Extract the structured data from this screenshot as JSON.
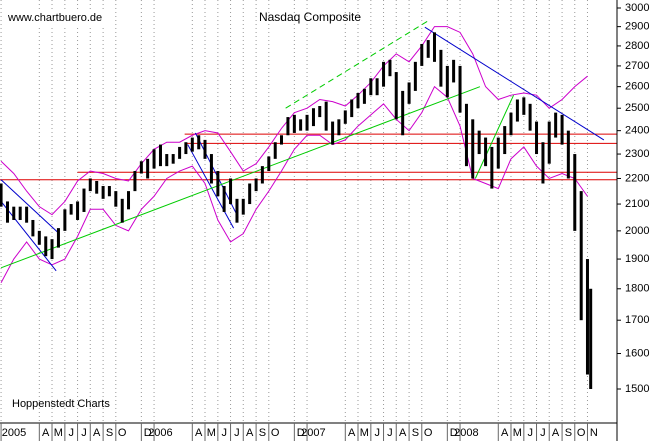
{
  "chart_data": {
    "type": "ohlc",
    "title": "Nasdaq Composite",
    "source": "www.chartbuero.de",
    "credit": "Hoppenstedt Charts",
    "log_y": true,
    "grid": "x",
    "bar_color": "#000000",
    "xlim": [
      2004.993,
      2009.026
    ],
    "ylim": [
      1410,
      3044
    ],
    "yticks": [
      1500,
      1600,
      1700,
      1800,
      1900,
      2000,
      2100,
      2200,
      2300,
      2400,
      2500,
      2600,
      2700,
      2800,
      2900,
      3000
    ],
    "xticks": [
      {
        "value": 2005,
        "label": "2005"
      },
      {
        "value": 2005.25,
        "label": "A"
      },
      {
        "value": 2005.333,
        "label": "M"
      },
      {
        "value": 2005.417,
        "label": "J"
      },
      {
        "value": 2005.5,
        "label": "J"
      },
      {
        "value": 2005.583,
        "label": "A"
      },
      {
        "value": 2005.667,
        "label": "S"
      },
      {
        "value": 2005.75,
        "label": "O"
      },
      {
        "value": 2005.917,
        "label": "D"
      },
      {
        "value": 2006,
        "label": "2006"
      },
      {
        "value": 2006.25,
        "label": "A"
      },
      {
        "value": 2006.333,
        "label": "M"
      },
      {
        "value": 2006.417,
        "label": "J"
      },
      {
        "value": 2006.5,
        "label": "J"
      },
      {
        "value": 2006.583,
        "label": "A"
      },
      {
        "value": 2006.667,
        "label": "S"
      },
      {
        "value": 2006.75,
        "label": "O"
      },
      {
        "value": 2006.917,
        "label": "D"
      },
      {
        "value": 2007,
        "label": "2007"
      },
      {
        "value": 2007.25,
        "label": "A"
      },
      {
        "value": 2007.333,
        "label": "M"
      },
      {
        "value": 2007.417,
        "label": "J"
      },
      {
        "value": 2007.5,
        "label": "J"
      },
      {
        "value": 2007.583,
        "label": "A"
      },
      {
        "value": 2007.667,
        "label": "S"
      },
      {
        "value": 2007.75,
        "label": "O"
      },
      {
        "value": 2007.917,
        "label": "D"
      },
      {
        "value": 2008,
        "label": "2008"
      },
      {
        "value": 2008.25,
        "label": "A"
      },
      {
        "value": 2008.333,
        "label": "M"
      },
      {
        "value": 2008.417,
        "label": "J"
      },
      {
        "value": 2008.5,
        "label": "J"
      },
      {
        "value": 2008.583,
        "label": "A"
      },
      {
        "value": 2008.667,
        "label": "S"
      },
      {
        "value": 2008.75,
        "label": "O"
      },
      {
        "value": 2008.833,
        "label": "N"
      }
    ],
    "x": [
      2005,
      2005.042,
      2005.083,
      2005.125,
      2005.167,
      2005.208,
      2005.25,
      2005.292,
      2005.333,
      2005.375,
      2005.417,
      2005.458,
      2005.5,
      2005.542,
      2005.583,
      2005.625,
      2005.667,
      2005.708,
      2005.75,
      2005.792,
      2005.833,
      2005.875,
      2005.917,
      2005.958,
      2006,
      2006.042,
      2006.083,
      2006.125,
      2006.167,
      2006.208,
      2006.25,
      2006.292,
      2006.333,
      2006.375,
      2006.417,
      2006.458,
      2006.5,
      2006.542,
      2006.583,
      2006.625,
      2006.667,
      2006.708,
      2006.75,
      2006.792,
      2006.833,
      2006.875,
      2006.917,
      2006.958,
      2007,
      2007.042,
      2007.083,
      2007.125,
      2007.167,
      2007.208,
      2007.25,
      2007.292,
      2007.333,
      2007.375,
      2007.417,
      2007.458,
      2007.5,
      2007.542,
      2007.583,
      2007.625,
      2007.667,
      2007.708,
      2007.75,
      2007.792,
      2007.833,
      2007.875,
      2007.917,
      2007.958,
      2008,
      2008.042,
      2008.083,
      2008.125,
      2008.167,
      2008.208,
      2008.25,
      2008.292,
      2008.333,
      2008.375,
      2008.417,
      2008.458,
      2008.5,
      2008.542,
      2008.583,
      2008.625,
      2008.667,
      2008.708,
      2008.75,
      2008.792,
      2008.833,
      2008.854
    ],
    "high": [
      2180,
      2110,
      2090,
      2090,
      2090,
      2040,
      2000,
      1980,
      1970,
      2010,
      2080,
      2100,
      2110,
      2160,
      2200,
      2190,
      2170,
      2170,
      2150,
      2120,
      2150,
      2230,
      2270,
      2280,
      2320,
      2340,
      2300,
      2300,
      2330,
      2350,
      2370,
      2380,
      2360,
      2300,
      2230,
      2170,
      2200,
      2120,
      2120,
      2180,
      2200,
      2250,
      2290,
      2350,
      2380,
      2460,
      2470,
      2450,
      2470,
      2500,
      2510,
      2530,
      2440,
      2450,
      2490,
      2540,
      2570,
      2590,
      2640,
      2640,
      2720,
      2730,
      2670,
      2580,
      2620,
      2720,
      2810,
      2830,
      2870,
      2780,
      2700,
      2730,
      2700,
      2520,
      2450,
      2400,
      2370,
      2330,
      2370,
      2420,
      2480,
      2540,
      2550,
      2520,
      2440,
      2350,
      2440,
      2480,
      2470,
      2400,
      2300,
      2150,
      1900,
      1800
    ],
    "low": [
      2090,
      2030,
      2040,
      2040,
      2030,
      1980,
      1950,
      1910,
      1900,
      1940,
      2000,
      2060,
      2040,
      2070,
      2150,
      2140,
      2120,
      2130,
      2090,
      2030,
      2080,
      2150,
      2220,
      2200,
      2240,
      2250,
      2250,
      2260,
      2280,
      2300,
      2310,
      2320,
      2280,
      2180,
      2130,
      2070,
      2100,
      2030,
      2060,
      2100,
      2150,
      2180,
      2230,
      2280,
      2340,
      2380,
      2390,
      2400,
      2400,
      2420,
      2460,
      2400,
      2340,
      2380,
      2430,
      2460,
      2500,
      2520,
      2560,
      2560,
      2600,
      2650,
      2450,
      2380,
      2520,
      2580,
      2700,
      2740,
      2720,
      2600,
      2550,
      2620,
      2480,
      2250,
      2200,
      2300,
      2250,
      2160,
      2240,
      2300,
      2380,
      2440,
      2470,
      2400,
      2300,
      2180,
      2260,
      2370,
      2340,
      2200,
      2000,
      1700,
      1540,
      1500
    ],
    "bands": {
      "color": "#cc00cc",
      "x": [
        2005,
        2005.083,
        2005.167,
        2005.25,
        2005.333,
        2005.417,
        2005.5,
        2005.583,
        2005.667,
        2005.75,
        2005.833,
        2005.917,
        2006,
        2006.083,
        2006.167,
        2006.25,
        2006.333,
        2006.417,
        2006.5,
        2006.583,
        2006.667,
        2006.75,
        2006.833,
        2006.917,
        2007,
        2007.083,
        2007.167,
        2007.25,
        2007.333,
        2007.417,
        2007.5,
        2007.583,
        2007.667,
        2007.75,
        2007.833,
        2007.917,
        2008,
        2008.083,
        2008.167,
        2008.25,
        2008.333,
        2008.417,
        2008.5,
        2008.583,
        2008.667,
        2008.75,
        2008.833
      ],
      "upper": [
        2270,
        2220,
        2150,
        2090,
        2060,
        2110,
        2190,
        2230,
        2220,
        2200,
        2190,
        2260,
        2320,
        2350,
        2350,
        2380,
        2400,
        2390,
        2310,
        2230,
        2260,
        2330,
        2410,
        2480,
        2500,
        2540,
        2530,
        2510,
        2560,
        2620,
        2700,
        2760,
        2720,
        2800,
        2900,
        2900,
        2870,
        2760,
        2600,
        2540,
        2560,
        2570,
        2560,
        2500,
        2540,
        2600,
        2650
      ],
      "lower": [
        1820,
        1900,
        1960,
        1900,
        1880,
        1900,
        1980,
        2080,
        2080,
        2020,
        2000,
        2080,
        2130,
        2200,
        2230,
        2250,
        2180,
        2040,
        1960,
        1990,
        2080,
        2150,
        2230,
        2320,
        2380,
        2380,
        2340,
        2360,
        2420,
        2470,
        2520,
        2450,
        2400,
        2480,
        2600,
        2550,
        2420,
        2200,
        2180,
        2160,
        2280,
        2330,
        2250,
        2200,
        2220,
        2200,
        2130
      ]
    },
    "levels": {
      "color": "#dd0000",
      "values": [
        2385,
        2345,
        2225,
        2195
      ],
      "from": [
        2006.2,
        2006.2,
        2005.5,
        2004.993
      ],
      "to": 2009.026
    },
    "trend_lines": [
      {
        "color": "#0000cc",
        "dashed": false,
        "x": [
          2005,
          2005.38
        ],
        "y": [
          2195,
          1990
        ]
      },
      {
        "color": "#0000cc",
        "dashed": false,
        "x": [
          2005,
          2005.36
        ],
        "y": [
          2110,
          1860
        ]
      },
      {
        "color": "#0000cc",
        "dashed": false,
        "x": [
          2006.27,
          2006.55
        ],
        "y": [
          2390,
          2050
        ]
      },
      {
        "color": "#0000cc",
        "dashed": false,
        "x": [
          2006.22,
          2006.52
        ],
        "y": [
          2340,
          2010
        ]
      },
      {
        "color": "#00cc00",
        "dashed": false,
        "x": [
          2005,
          2008.13
        ],
        "y": [
          1870,
          2600
        ]
      },
      {
        "color": "#00cc00",
        "dashed": true,
        "x": [
          2006.86,
          2007.79
        ],
        "y": [
          2500,
          2930
        ]
      },
      {
        "color": "#00cc00",
        "dashed": false,
        "x": [
          2008.1,
          2008.35
        ],
        "y": [
          2200,
          2560
        ]
      },
      {
        "color": "#0000cc",
        "dashed": false,
        "x": [
          2007.77,
          2008.94
        ],
        "y": [
          2897,
          2360
        ]
      }
    ]
  }
}
